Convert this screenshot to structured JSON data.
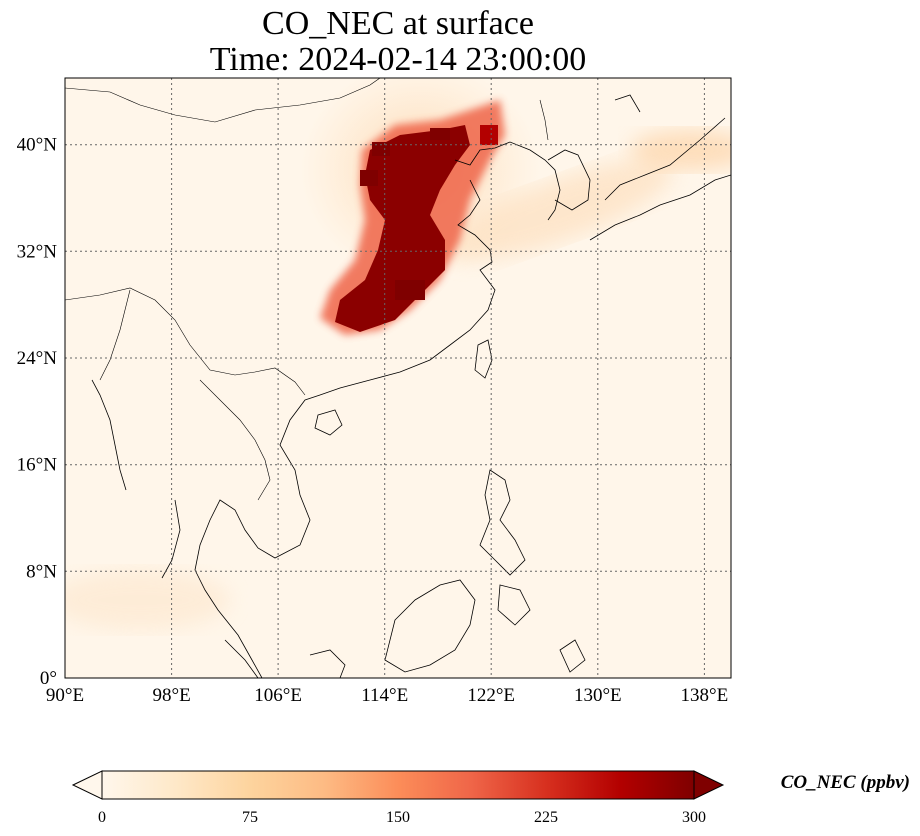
{
  "title": {
    "line1": "CO_NEC at surface",
    "line2": "Time: 2024-02-14 23:00:00"
  },
  "map": {
    "projection": "PlateCarree",
    "lon_range": [
      90,
      140
    ],
    "lat_range": [
      0,
      45
    ],
    "gridlines": "dotted",
    "x_ticks": [
      "90°E",
      "98°E",
      "106°E",
      "114°E",
      "122°E",
      "130°E",
      "138°E"
    ],
    "x_tick_values": [
      90,
      98,
      106,
      114,
      122,
      130,
      138
    ],
    "y_ticks": [
      "0°",
      "8°N",
      "16°N",
      "24°N",
      "32°N",
      "40°N"
    ],
    "y_tick_values": [
      0,
      8,
      16,
      24,
      32,
      40
    ],
    "field": "CO_NEC concentration, high values (dark red) over eastern China ~26–40°N, 109–118°E"
  },
  "colorbar": {
    "label": "CO_NEC (ppbv)",
    "ticks": [
      "0",
      "75",
      "150",
      "225",
      "300"
    ],
    "tick_values": [
      0,
      75,
      150,
      225,
      300
    ],
    "vmin": 0,
    "vmax": 300,
    "colormap": "OrRd",
    "extend": "both",
    "colors": [
      "#fff7ec",
      "#fee8c8",
      "#fdd49e",
      "#fdbb84",
      "#fc8d59",
      "#ef6548",
      "#d7301f",
      "#b30000",
      "#7f0000"
    ]
  }
}
